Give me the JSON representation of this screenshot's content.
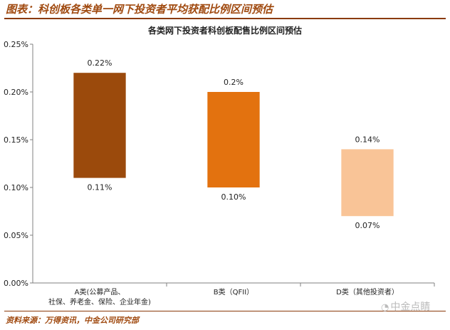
{
  "header": {
    "title": "图表：科创板各类单一网下投资者平均获配比例区间预估"
  },
  "footer": {
    "source": "资料来源：万得资讯，中金公司研究部"
  },
  "watermark": {
    "text": "中金点睛",
    "icon": "wechat-icon"
  },
  "chart_data": {
    "type": "bar",
    "title": "各类网下投资者科创板配售比例区间预估",
    "categories": [
      [
        "A类(公募产品、",
        "社保、养老金、保险、企业年金)"
      ],
      [
        "B类（QFII）"
      ],
      [
        "D类（其他投资者）"
      ]
    ],
    "series": [
      {
        "low": [
          0.11,
          0.1,
          0.07
        ],
        "high": [
          0.22,
          0.2,
          0.14
        ],
        "low_labels": [
          "0.11%",
          "0.10%",
          "0.07%"
        ],
        "high_labels": [
          "0.22%",
          "0.2%",
          "0.14%"
        ],
        "colors": [
          "#9b4a0c",
          "#e3720f",
          "#f9c497"
        ]
      }
    ],
    "yaxis": {
      "ticks": [
        0,
        0.05,
        0.1,
        0.15,
        0.2,
        0.25
      ],
      "tick_labels": [
        "0.00%",
        "0.05%",
        "0.10%",
        "0.15%",
        "0.20%",
        "0.25%"
      ],
      "ylim": [
        0,
        0.25
      ]
    },
    "grid": false,
    "legend": "none"
  }
}
